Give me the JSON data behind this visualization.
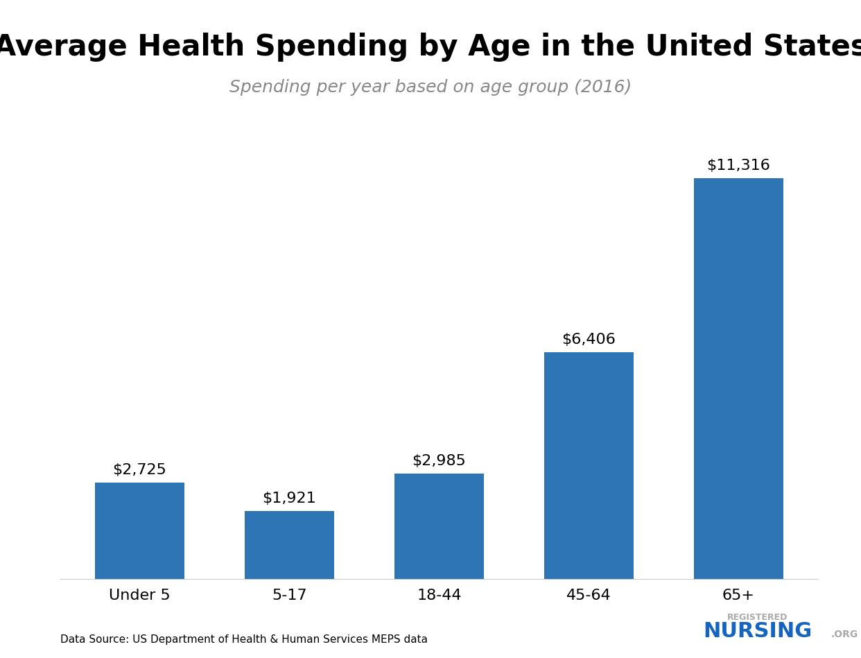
{
  "categories": [
    "Under 5",
    "5-17",
    "18-44",
    "45-64",
    "65+"
  ],
  "values": [
    2725,
    1921,
    2985,
    6406,
    11316
  ],
  "labels": [
    "$2,725",
    "$1,921",
    "$2,985",
    "$6,406",
    "$11,316"
  ],
  "bar_color": "#2e75b6",
  "title": "Average Health Spending by Age in the United States",
  "subtitle": "Spending per year based on age group (2016)",
  "title_fontsize": 30,
  "subtitle_fontsize": 18,
  "subtitle_color": "#888888",
  "label_fontsize": 16,
  "tick_fontsize": 16,
  "source_text": "Data Source: US Department of Health & Human Services MEPS data",
  "source_fontsize": 11,
  "background_color": "#ffffff",
  "ylim": [
    0,
    13000
  ]
}
